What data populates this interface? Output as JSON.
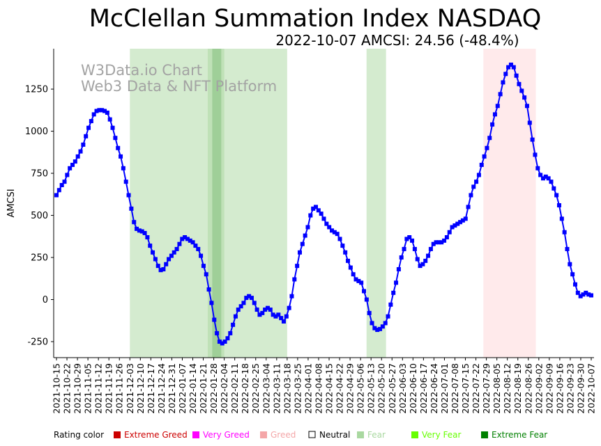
{
  "chart_data": {
    "type": "line",
    "title": "McClellan Summation Index NASDAQ",
    "subtitle": "2022-10-07 AMCSI: 24.56 (-48.4%)",
    "ylabel": "AMCSI",
    "xlabel": "",
    "ylim": [
      -345,
      1490
    ],
    "yticks": [
      -250,
      0,
      250,
      500,
      750,
      1000,
      1250
    ],
    "x_start": "2021-10-15",
    "x_end": "2022-10-07",
    "xtick_labels": [
      "2021-10-15",
      "2021-10-22",
      "2021-10-29",
      "2021-11-05",
      "2021-11-12",
      "2021-11-19",
      "2021-11-26",
      "2021-12-03",
      "2021-12-10",
      "2021-12-17",
      "2021-12-24",
      "2021-12-31",
      "2022-01-07",
      "2022-01-14",
      "2022-01-21",
      "2022-01-28",
      "2022-02-04",
      "2022-02-11",
      "2022-02-18",
      "2022-02-25",
      "2022-03-04",
      "2022-03-11",
      "2022-03-18",
      "2022-03-25",
      "2022-04-01",
      "2022-04-08",
      "2022-04-15",
      "2022-04-22",
      "2022-04-29",
      "2022-05-06",
      "2022-05-13",
      "2022-05-20",
      "2022-05-27",
      "2022-06-03",
      "2022-06-10",
      "2022-06-17",
      "2022-06-24",
      "2022-07-01",
      "2022-07-08",
      "2022-07-15",
      "2022-07-22",
      "2022-07-29",
      "2022-08-05",
      "2022-08-12",
      "2022-08-19",
      "2022-08-26",
      "2022-09-02",
      "2022-09-09",
      "2022-09-16",
      "2022-09-23",
      "2022-09-30",
      "2022-10-07"
    ],
    "series": [
      {
        "name": "AMCSI",
        "color": "#0000ff",
        "values": [
          620,
          650,
          680,
          700,
          740,
          780,
          800,
          820,
          850,
          880,
          920,
          970,
          1020,
          1060,
          1100,
          1120,
          1125,
          1125,
          1120,
          1110,
          1070,
          1020,
          960,
          900,
          850,
          780,
          700,
          620,
          540,
          460,
          420,
          410,
          405,
          395,
          370,
          320,
          280,
          240,
          200,
          175,
          180,
          210,
          240,
          260,
          280,
          300,
          330,
          360,
          370,
          360,
          350,
          340,
          320,
          300,
          260,
          200,
          150,
          60,
          -20,
          -120,
          -200,
          -250,
          -260,
          -250,
          -230,
          -200,
          -150,
          -100,
          -60,
          -40,
          -20,
          10,
          20,
          10,
          -20,
          -60,
          -90,
          -80,
          -60,
          -50,
          -60,
          -90,
          -100,
          -90,
          -110,
          -130,
          -100,
          -50,
          20,
          120,
          200,
          280,
          330,
          380,
          430,
          500,
          540,
          550,
          530,
          510,
          480,
          450,
          430,
          410,
          400,
          390,
          360,
          320,
          280,
          230,
          190,
          150,
          120,
          110,
          100,
          50,
          0,
          -80,
          -140,
          -170,
          -180,
          -175,
          -160,
          -140,
          -100,
          -30,
          40,
          100,
          180,
          250,
          300,
          360,
          370,
          350,
          300,
          240,
          200,
          210,
          230,
          260,
          300,
          330,
          340,
          340,
          340,
          350,
          370,
          400,
          430,
          440,
          450,
          460,
          470,
          480,
          550,
          620,
          670,
          700,
          740,
          800,
          850,
          900,
          960,
          1040,
          1100,
          1150,
          1220,
          1290,
          1340,
          1380,
          1395,
          1380,
          1330,
          1280,
          1240,
          1200,
          1150,
          1050,
          950,
          860,
          780,
          740,
          720,
          730,
          720,
          700,
          660,
          620,
          560,
          480,
          400,
          300,
          210,
          150,
          90,
          40,
          20,
          30,
          40,
          30,
          25
        ]
      }
    ],
    "shaded_regions": [
      {
        "start": "2021-12-03",
        "end": "2022-03-18",
        "rating": "Fear",
        "color": "#a9d8a0"
      },
      {
        "start": "2022-01-24",
        "end": "2022-02-04",
        "rating": "Fear",
        "color": "#a9d8a0"
      },
      {
        "start": "2022-01-27",
        "end": "2022-02-02",
        "rating": "Extreme Fear",
        "color": "#7fbe7a"
      },
      {
        "start": "2022-05-10",
        "end": "2022-05-23",
        "rating": "Fear",
        "color": "#a9d8a0"
      },
      {
        "start": "2022-07-27",
        "end": "2022-08-31",
        "rating": "Greed",
        "color": "#ffd6d8"
      }
    ],
    "watermark": [
      "W3Data.io Chart",
      "Web3 Data & NFT Platform"
    ],
    "legend": {
      "title": "Rating color",
      "placement": "bottom",
      "items": [
        {
          "label": "Extreme Greed",
          "color": "#cc0000"
        },
        {
          "label": "Very Greed",
          "color": "#ff00ff"
        },
        {
          "label": "Greed",
          "color": "#f4a6a8"
        },
        {
          "label": "Neutral",
          "color": "#000000"
        },
        {
          "label": "Fear",
          "color": "#a9d8a0"
        },
        {
          "label": "Very Fear",
          "color": "#66ff00"
        },
        {
          "label": "Extreme Fear",
          "color": "#008000"
        }
      ]
    }
  }
}
